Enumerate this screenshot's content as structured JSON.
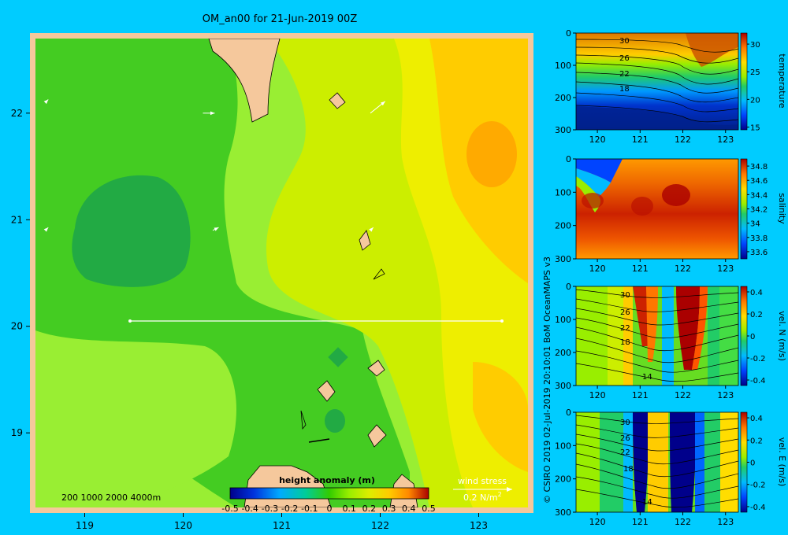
{
  "title": "OM_an00 for 21-Jun-2019 00Z",
  "credit": "© CSIRO 2019   02-Jul-2019 20:10:01 BoM OceanMAPS v3",
  "colors": {
    "background": "#00CCFF",
    "land": "#F5C89C",
    "map_frame": "#F5C89C",
    "anomaly_low": "#00AA33",
    "anomaly_high": "#FFAA00"
  },
  "map": {
    "depth_legend": "200  1000  2000  4000m",
    "colorbar": {
      "title": "height anomaly  (m)",
      "ticks": [
        "-0.5",
        "-0.4",
        "-0.3",
        "-0.2",
        "-0.1",
        "0",
        "0.1",
        "0.2",
        "0.3",
        "0.4",
        "0.5"
      ]
    },
    "wind_legend": {
      "label": "wind stress",
      "value": "0.2 N/m",
      "superscript": "2"
    },
    "section_line": {
      "lat": 20.0,
      "lon_start": 119.5,
      "lon_end": 123.2
    }
  },
  "chart_data": [
    {
      "type": "heatmap",
      "name": "map",
      "title": "OM_an00 for 21-Jun-2019 00Z",
      "variable": "height anomaly (m)",
      "xlim": [
        118.5,
        123.5
      ],
      "ylim": [
        18.3,
        22.7
      ],
      "x_ticks": [
        "119",
        "120",
        "121",
        "122",
        "123"
      ],
      "y_ticks": [
        "19",
        "20",
        "21",
        "22"
      ],
      "colorbar_range": [
        -0.5,
        0.5
      ],
      "anomaly_ranges": [
        {
          "region": "west, 20-22N",
          "value": -0.1
        },
        {
          "region": "centre 20.6N 119.8E",
          "value": -0.15
        },
        {
          "region": "north-central strip",
          "value": 0.0
        },
        {
          "region": "south-west 18.5-19.8N",
          "value": 0.1
        },
        {
          "region": "east of 122E",
          "value": 0.2
        },
        {
          "region": "eddy 21.5N 123E",
          "value": 0.3
        }
      ],
      "wind_stress_vectors": [
        {
          "lon": 118.6,
          "lat": 22.1,
          "u": 0.01,
          "v": 0.01
        },
        {
          "lon": 120.2,
          "lat": 22.0,
          "u": 0.04,
          "v": 0.0
        },
        {
          "lon": 121.9,
          "lat": 22.0,
          "u": 0.05,
          "v": 0.04
        },
        {
          "lon": 120.3,
          "lat": 20.9,
          "u": 0.02,
          "v": 0.01
        },
        {
          "lon": 121.9,
          "lat": 20.9,
          "u": 0.01,
          "v": 0.01
        },
        {
          "lon": 118.6,
          "lat": 20.9,
          "u": 0.01,
          "v": 0.01
        }
      ]
    },
    {
      "type": "heatmap",
      "name": "temperature section",
      "variable": "temperature",
      "x_ticks": [
        "120",
        "121",
        "122",
        "123"
      ],
      "y_ticks": [
        "0",
        "100",
        "200",
        "300"
      ],
      "xlim": [
        119.5,
        123.3
      ],
      "ylim": [
        0,
        300
      ],
      "colorbar_ticks": [
        "30",
        "25",
        "20",
        "15"
      ],
      "colorbar_range": [
        14.5,
        32
      ],
      "contour_labels": [
        "30",
        "26",
        "22",
        "18"
      ]
    },
    {
      "type": "heatmap",
      "name": "salinity section",
      "variable": "salinity",
      "x_ticks": [
        "120",
        "121",
        "122",
        "123"
      ],
      "y_ticks": [
        "0",
        "100",
        "200",
        "300"
      ],
      "xlim": [
        119.5,
        123.3
      ],
      "ylim": [
        0,
        300
      ],
      "colorbar_ticks": [
        "34.8",
        "34.6",
        "34.4",
        "34.2",
        "34",
        "33.8",
        "33.6"
      ],
      "colorbar_range": [
        33.5,
        34.9
      ]
    },
    {
      "type": "heatmap",
      "name": "north velocity section",
      "variable": "vel. N  (m/s)",
      "x_ticks": [
        "120",
        "121",
        "122",
        "123"
      ],
      "y_ticks": [
        "0",
        "100",
        "200",
        "300"
      ],
      "xlim": [
        119.5,
        123.3
      ],
      "ylim": [
        0,
        300
      ],
      "colorbar_ticks": [
        "0.4",
        "0.2",
        "0",
        "-0.2",
        "-0.4"
      ],
      "colorbar_range": [
        -0.45,
        0.45
      ],
      "contour_labels": [
        "30",
        "26",
        "22",
        "18",
        "14"
      ]
    },
    {
      "type": "heatmap",
      "name": "east velocity section",
      "variable": "vel. E  (m/s)",
      "x_ticks": [
        "120",
        "121",
        "122",
        "123"
      ],
      "y_ticks": [
        "0",
        "100",
        "200",
        "300"
      ],
      "xlim": [
        119.5,
        123.3
      ],
      "ylim": [
        0,
        300
      ],
      "colorbar_ticks": [
        "0.4",
        "0.2",
        "0",
        "-0.2",
        "-0.4"
      ],
      "colorbar_range": [
        -0.45,
        0.45
      ],
      "contour_labels": [
        "30",
        "26",
        "22",
        "18",
        "14"
      ]
    }
  ]
}
